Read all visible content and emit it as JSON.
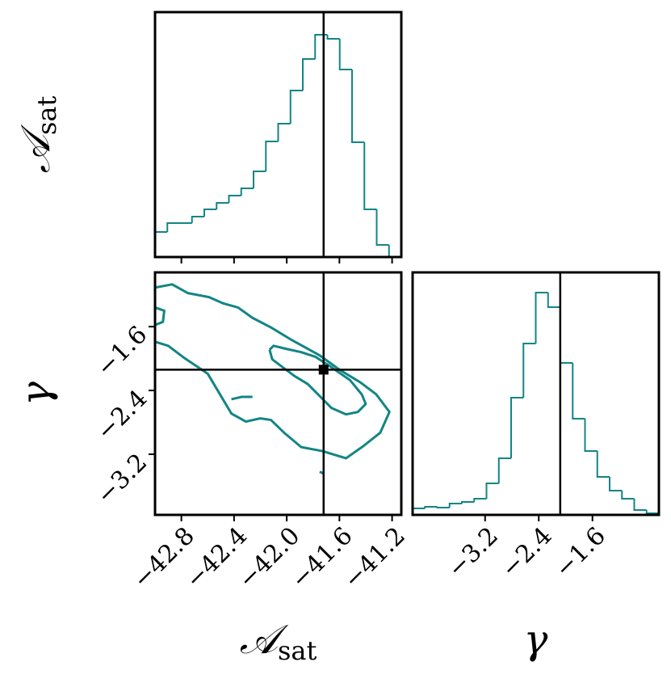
{
  "chart_data": [
    {
      "type": "histogram",
      "ylabel": {
        "main": "𝒜",
        "sub": "sat"
      },
      "color": "#138585",
      "bins": [
        -43.0,
        -42.9065,
        -42.813,
        -42.7195,
        -42.626,
        -42.5325,
        -42.439,
        -42.3455,
        -42.252,
        -42.1585,
        -42.065,
        -41.9715,
        -41.878,
        -41.7845,
        -41.691,
        -41.5975,
        -41.504,
        -41.4105,
        -41.317,
        -41.2235,
        -41.13
      ],
      "values": [
        31,
        42,
        42,
        50,
        59,
        67,
        76,
        85,
        106,
        143,
        165,
        206,
        245,
        275,
        270,
        232,
        142,
        59,
        15,
        0
      ],
      "xlim": [
        -43.0,
        -41.13
      ],
      "ylim": [
        0,
        303
      ],
      "xticks": [
        -42.8,
        -42.4,
        -42.0,
        -41.6,
        -41.2
      ],
      "truth_x": -41.72
    },
    {
      "type": "contour",
      "xlabel": {
        "main": "𝒜",
        "sub": "sat"
      },
      "ylabel": "γ",
      "series": [
        {
          "color": "#138585",
          "x": [
            -43.0,
            -42.87,
            -42.75,
            -42.59,
            -42.48,
            -42.37,
            -42.26,
            -42.12,
            -41.97,
            -41.75,
            -41.6,
            -41.44,
            -41.32,
            -41.22,
            -41.29,
            -41.42,
            -41.55,
            -41.73,
            -41.89,
            -42.02,
            -42.12,
            -42.2,
            -42.31,
            -42.42,
            -42.6,
            -42.78,
            -42.9,
            -43.0,
            null,
            -43.0,
            -42.93,
            -42.94,
            -43.0,
            null,
            -42.42,
            -42.34,
            -42.26,
            null,
            -41.75,
            -41.72
          ],
          "y": [
            -1.11,
            -1.07,
            -1.18,
            -1.23,
            -1.31,
            -1.36,
            -1.49,
            -1.61,
            -1.76,
            -1.96,
            -2.14,
            -2.3,
            -2.45,
            -2.67,
            -2.93,
            -3.1,
            -3.25,
            -3.16,
            -3.11,
            -2.93,
            -2.77,
            -2.75,
            -2.79,
            -2.69,
            -2.19,
            -1.99,
            -1.84,
            -1.79,
            null,
            -1.36,
            -1.4,
            -1.54,
            -1.58,
            null,
            -2.51,
            -2.48,
            -2.48,
            null,
            -3.42,
            -3.44
          ]
        },
        {
          "color": "#138585",
          "x": [
            -42.13,
            -42.1,
            -42.0,
            -41.89,
            -41.78,
            -41.66,
            -41.52,
            -41.43,
            -41.4,
            -41.46,
            -41.55,
            -41.66,
            -41.75,
            -41.84,
            -41.94,
            -42.03,
            -42.11,
            -42.13
          ],
          "y": [
            -1.89,
            -1.84,
            -1.88,
            -1.92,
            -1.98,
            -2.11,
            -2.27,
            -2.45,
            -2.57,
            -2.67,
            -2.7,
            -2.62,
            -2.47,
            -2.32,
            -2.22,
            -2.11,
            -2.01,
            -1.89
          ]
        }
      ],
      "xlim": [
        -43.0,
        -41.13
      ],
      "ylim": [
        -3.96,
        -0.92
      ],
      "xticks": [
        {
          "value": -42.8,
          "label": "−42.8"
        },
        {
          "value": -42.4,
          "label": "−42.4"
        },
        {
          "value": -42.0,
          "label": "−42.0"
        },
        {
          "value": -41.6,
          "label": "−41.6"
        },
        {
          "value": -41.2,
          "label": "−41.2"
        }
      ],
      "yticks": [
        {
          "value": -1.6,
          "label": "−1.6"
        },
        {
          "value": -2.4,
          "label": "−2.4"
        },
        {
          "value": -3.2,
          "label": "−3.2"
        }
      ],
      "truth": [
        -41.72,
        -2.14
      ]
    },
    {
      "type": "histogram",
      "xlabel": "γ",
      "color": "#138585",
      "bins": [
        -4.28,
        -4.0965,
        -3.913,
        -3.7295,
        -3.546,
        -3.3625,
        -3.179,
        -2.9955,
        -2.812,
        -2.6285,
        -2.445,
        -2.2615,
        -2.078,
        -1.8945,
        -1.711,
        -1.5275,
        -1.344,
        -1.1605,
        -0.977,
        -0.7935,
        -0.61
      ],
      "values": [
        8,
        10,
        9,
        14,
        16,
        20,
        39,
        70,
        145,
        212,
        275,
        257,
        188,
        119,
        79,
        47,
        30,
        20,
        6,
        2
      ],
      "xlim": [
        -4.28,
        -0.61
      ],
      "ylim": [
        0,
        300
      ],
      "xticks": [
        {
          "value": -3.2,
          "label": "−3.2"
        },
        {
          "value": -2.4,
          "label": "−2.4"
        },
        {
          "value": -1.6,
          "label": "−1.6"
        }
      ],
      "truth_x": -2.08
    }
  ]
}
